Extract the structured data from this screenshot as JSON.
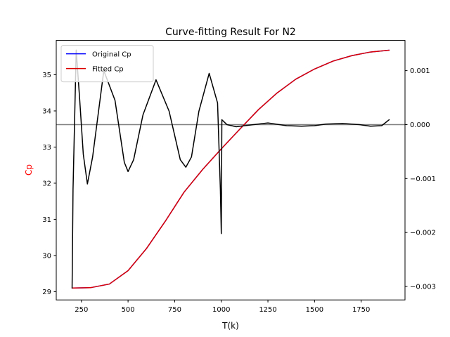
{
  "chart_data": {
    "type": "line",
    "title": "Curve-fitting Result For N2",
    "xlabel": "T(k)",
    "ylabel": "Cp",
    "ylabel_color": "#ff0000",
    "xlim": [
      115,
      1985
    ],
    "ylim": [
      28.77,
      35.95
    ],
    "y2lim": [
      -0.00325,
      0.00156
    ],
    "x_ticks": [
      250,
      500,
      750,
      1000,
      1250,
      1500,
      1750
    ],
    "y_ticks": [
      29,
      30,
      31,
      32,
      33,
      34,
      35
    ],
    "y2_ticks": [
      0.001,
      0.0,
      -0.001,
      -0.002,
      -0.003
    ],
    "y2_tick_labels": [
      "0.001",
      "0.000",
      "−0.001",
      "−0.002",
      "−0.003"
    ],
    "grid": false,
    "legend_position": "top-left",
    "series": [
      {
        "name": "Original Cp",
        "axis": "left",
        "color": "#0000ff",
        "x": [
          200,
          300,
          400,
          500,
          600,
          700,
          800,
          900,
          1000,
          1100,
          1200,
          1300,
          1400,
          1500,
          1600,
          1700,
          1800,
          1900
        ],
        "values": [
          29.1,
          29.11,
          29.21,
          29.58,
          30.2,
          30.95,
          31.75,
          32.38,
          32.95,
          33.5,
          34.04,
          34.5,
          34.88,
          35.16,
          35.38,
          35.53,
          35.63,
          35.68
        ]
      },
      {
        "name": "Fitted Cp",
        "axis": "left",
        "color": "#dd0000",
        "x": [
          200,
          300,
          400,
          500,
          600,
          700,
          800,
          900,
          1000,
          1100,
          1200,
          1300,
          1400,
          1500,
          1600,
          1700,
          1800,
          1900
        ],
        "values": [
          29.1,
          29.11,
          29.21,
          29.58,
          30.2,
          30.95,
          31.75,
          32.38,
          32.95,
          33.5,
          34.04,
          34.5,
          34.88,
          35.16,
          35.38,
          35.53,
          35.63,
          35.68
        ]
      },
      {
        "axis": "right",
        "color": "#000000",
        "x": [
          200,
          205,
          222,
          240,
          260,
          282,
          310,
          370,
          430,
          480,
          500,
          530,
          580,
          650,
          720,
          780,
          810,
          840,
          880,
          935,
          980,
          995,
          1000,
          1003,
          1030,
          1080,
          1150,
          1250,
          1350,
          1430,
          1500,
          1560,
          1650,
          1740,
          1800,
          1860,
          1900
        ],
        "values": [
          -0.00303,
          -0.0012,
          0.00138,
          0.0005,
          -0.00055,
          -0.0011,
          -0.0006,
          0.001,
          0.00045,
          -0.0007,
          -0.00087,
          -0.00065,
          0.00018,
          0.00083,
          0.00025,
          -0.00065,
          -0.00079,
          -0.0006,
          0.00025,
          0.00095,
          0.0004,
          -0.0012,
          -0.00202,
          9e-05,
          0.0,
          -4e-05,
          -1e-05,
          3e-05,
          -2e-05,
          -3e-05,
          -2e-05,
          1e-05,
          2e-05,
          0.0,
          -3e-05,
          -2e-05,
          9e-05
        ]
      }
    ],
    "reference_line": {
      "axis": "right",
      "value": 0.0,
      "color": "#808080"
    }
  }
}
